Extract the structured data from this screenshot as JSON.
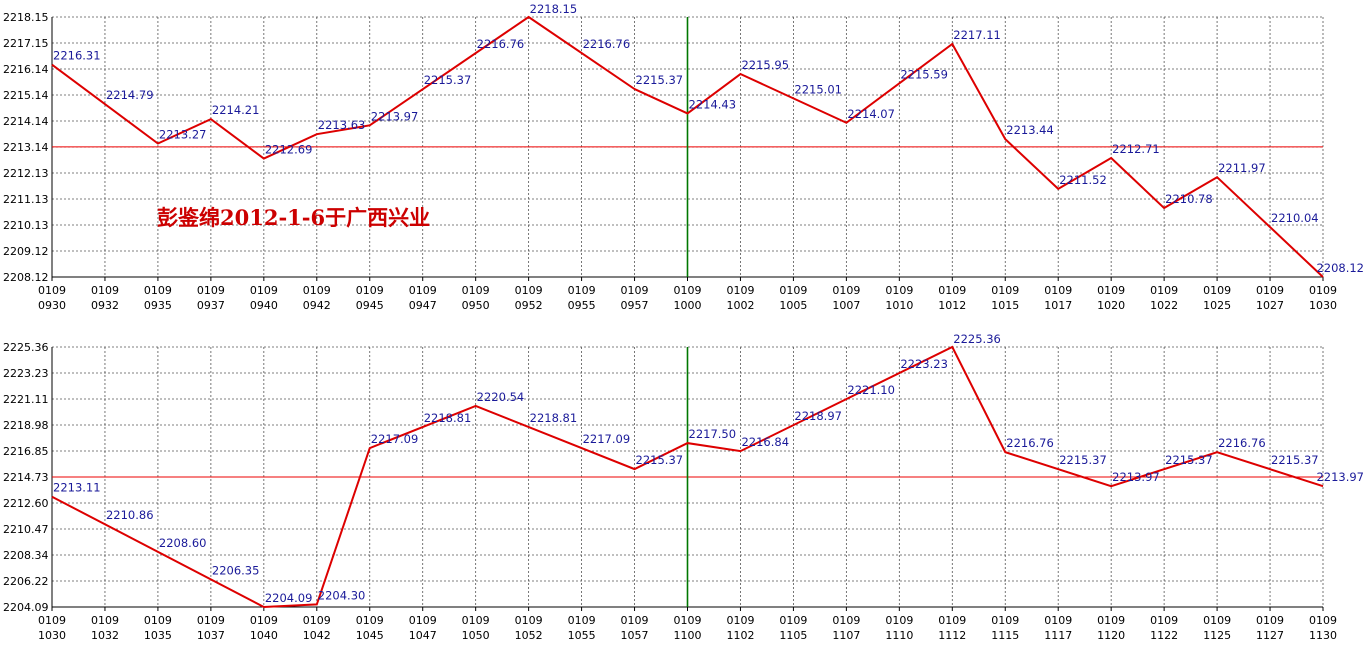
{
  "colors": {
    "line": "#dd0000",
    "label": "#1a1a99",
    "grid": "#555555",
    "axis": "#000000",
    "reference": "#ee0000",
    "noon_marker": "#007700",
    "watermark": "#cc0000"
  },
  "watermark": "彭鉴绵2012-1-6于广西兴业",
  "chart_data": [
    {
      "type": "line",
      "grid": true,
      "xlabel": "",
      "ylabel": "",
      "ylim": [
        2208.12,
        2218.15
      ],
      "y_ticks": [
        "2208.12",
        "2209.12",
        "2210.13",
        "2211.13",
        "2212.13",
        "2213.14",
        "2214.14",
        "2215.14",
        "2216.14",
        "2217.15",
        "2218.15"
      ],
      "x_ticks": [
        {
          "top": "0109",
          "bottom": "0930"
        },
        {
          "top": "0109",
          "bottom": "0932"
        },
        {
          "top": "0109",
          "bottom": "0935"
        },
        {
          "top": "0109",
          "bottom": "0937"
        },
        {
          "top": "0109",
          "bottom": "0940"
        },
        {
          "top": "0109",
          "bottom": "0942"
        },
        {
          "top": "0109",
          "bottom": "0945"
        },
        {
          "top": "0109",
          "bottom": "0947"
        },
        {
          "top": "0109",
          "bottom": "0950"
        },
        {
          "top": "0109",
          "bottom": "0952"
        },
        {
          "top": "0109",
          "bottom": "0955"
        },
        {
          "top": "0109",
          "bottom": "0957"
        },
        {
          "top": "0109",
          "bottom": "1000"
        },
        {
          "top": "0109",
          "bottom": "1002"
        },
        {
          "top": "0109",
          "bottom": "1005"
        },
        {
          "top": "0109",
          "bottom": "1007"
        },
        {
          "top": "0109",
          "bottom": "1010"
        },
        {
          "top": "0109",
          "bottom": "1012"
        },
        {
          "top": "0109",
          "bottom": "1015"
        },
        {
          "top": "0109",
          "bottom": "1017"
        },
        {
          "top": "0109",
          "bottom": "1020"
        },
        {
          "top": "0109",
          "bottom": "1022"
        },
        {
          "top": "0109",
          "bottom": "1025"
        },
        {
          "top": "0109",
          "bottom": "1027"
        },
        {
          "top": "0109",
          "bottom": "1030"
        }
      ],
      "reference_value": 2213.14,
      "marker_index": 12,
      "series": [
        {
          "values": [
            2216.31,
            null,
            2213.27,
            2214.21,
            2212.69,
            2213.63,
            2213.97,
            null,
            null,
            2218.15,
            null,
            2215.37,
            2214.43,
            2215.95,
            null,
            2214.07,
            null,
            2217.11,
            2213.44,
            2211.52,
            2212.71,
            2210.78,
            2211.97,
            null,
            2208.12
          ]
        }
      ],
      "annotations": [
        {
          "i": 0,
          "text": "2216.31"
        },
        {
          "i": 1,
          "text": "2214.79"
        },
        {
          "i": 2,
          "text": "2213.27"
        },
        {
          "i": 3,
          "text": "2214.21"
        },
        {
          "i": 4,
          "text": "2212.69"
        },
        {
          "i": 5,
          "text": "2213.63"
        },
        {
          "i": 6,
          "text": "2213.97"
        },
        {
          "i": 7,
          "text": "2215.37"
        },
        {
          "i": 8,
          "text": "2216.76"
        },
        {
          "i": 9,
          "text": "2218.15"
        },
        {
          "i": 10,
          "text": "2216.76"
        },
        {
          "i": 11,
          "text": "2215.37"
        },
        {
          "i": 12,
          "text": "2214.43"
        },
        {
          "i": 13,
          "text": "2215.95"
        },
        {
          "i": 14,
          "text": "2215.01"
        },
        {
          "i": 15,
          "text": "2214.07"
        },
        {
          "i": 16,
          "text": "2215.59"
        },
        {
          "i": 17,
          "text": "2217.11"
        },
        {
          "i": 18,
          "text": "2213.44"
        },
        {
          "i": 19,
          "text": "2211.52"
        },
        {
          "i": 20,
          "text": "2212.71"
        },
        {
          "i": 21,
          "text": "2210.78"
        },
        {
          "i": 22,
          "text": "2211.97"
        },
        {
          "i": 23,
          "text": "2210.04"
        },
        {
          "i": 24,
          "text": "2208.12"
        }
      ]
    },
    {
      "type": "line",
      "grid": true,
      "xlabel": "",
      "ylabel": "",
      "ylim": [
        2204.09,
        2225.36
      ],
      "y_ticks": [
        "2204.09",
        "2206.22",
        "2208.34",
        "2210.47",
        "2212.60",
        "2214.73",
        "2216.85",
        "2218.98",
        "2221.11",
        "2223.23",
        "2225.36"
      ],
      "x_ticks": [
        {
          "top": "0109",
          "bottom": "1030"
        },
        {
          "top": "0109",
          "bottom": "1032"
        },
        {
          "top": "0109",
          "bottom": "1035"
        },
        {
          "top": "0109",
          "bottom": "1037"
        },
        {
          "top": "0109",
          "bottom": "1040"
        },
        {
          "top": "0109",
          "bottom": "1042"
        },
        {
          "top": "0109",
          "bottom": "1045"
        },
        {
          "top": "0109",
          "bottom": "1047"
        },
        {
          "top": "0109",
          "bottom": "1050"
        },
        {
          "top": "0109",
          "bottom": "1052"
        },
        {
          "top": "0109",
          "bottom": "1055"
        },
        {
          "top": "0109",
          "bottom": "1057"
        },
        {
          "top": "0109",
          "bottom": "1100"
        },
        {
          "top": "0109",
          "bottom": "1102"
        },
        {
          "top": "0109",
          "bottom": "1105"
        },
        {
          "top": "0109",
          "bottom": "1107"
        },
        {
          "top": "0109",
          "bottom": "1110"
        },
        {
          "top": "0109",
          "bottom": "1112"
        },
        {
          "top": "0109",
          "bottom": "1115"
        },
        {
          "top": "0109",
          "bottom": "1117"
        },
        {
          "top": "0109",
          "bottom": "1120"
        },
        {
          "top": "0109",
          "bottom": "1122"
        },
        {
          "top": "0109",
          "bottom": "1125"
        },
        {
          "top": "0109",
          "bottom": "1127"
        },
        {
          "top": "0109",
          "bottom": "1130"
        }
      ],
      "reference_value": 2214.73,
      "marker_index": 12,
      "series": [
        {
          "values": [
            2213.11,
            null,
            null,
            null,
            2204.09,
            2204.3,
            2217.09,
            null,
            2220.54,
            null,
            null,
            2215.37,
            2217.5,
            2216.84,
            null,
            null,
            null,
            2225.36,
            2216.76,
            null,
            2213.97,
            null,
            2216.76,
            null,
            2213.97
          ]
        }
      ],
      "annotations": [
        {
          "i": 0,
          "text": "2213.11"
        },
        {
          "i": 1,
          "text": "2210.86"
        },
        {
          "i": 2,
          "text": "2208.60"
        },
        {
          "i": 3,
          "text": "2206.35"
        },
        {
          "i": 4,
          "text": "2204.09"
        },
        {
          "i": 5,
          "text": "2204.30"
        },
        {
          "i": 6,
          "text": "2217.09"
        },
        {
          "i": 7,
          "text": "2218.81"
        },
        {
          "i": 8,
          "text": "2220.54"
        },
        {
          "i": 9,
          "text": "2218.81"
        },
        {
          "i": 10,
          "text": "2217.09"
        },
        {
          "i": 11,
          "text": "2215.37"
        },
        {
          "i": 12,
          "text": "2217.50"
        },
        {
          "i": 13,
          "text": "2216.84"
        },
        {
          "i": 14,
          "text": "2218.97"
        },
        {
          "i": 15,
          "text": "2221.10"
        },
        {
          "i": 16,
          "text": "2223.23"
        },
        {
          "i": 17,
          "text": "2225.36"
        },
        {
          "i": 18,
          "text": "2216.76"
        },
        {
          "i": 19,
          "text": "2215.37"
        },
        {
          "i": 20,
          "text": "2213.97"
        },
        {
          "i": 21,
          "text": "2215.37"
        },
        {
          "i": 22,
          "text": "2216.76"
        },
        {
          "i": 23,
          "text": "2215.37"
        },
        {
          "i": 24,
          "text": "2213.97"
        }
      ]
    }
  ]
}
